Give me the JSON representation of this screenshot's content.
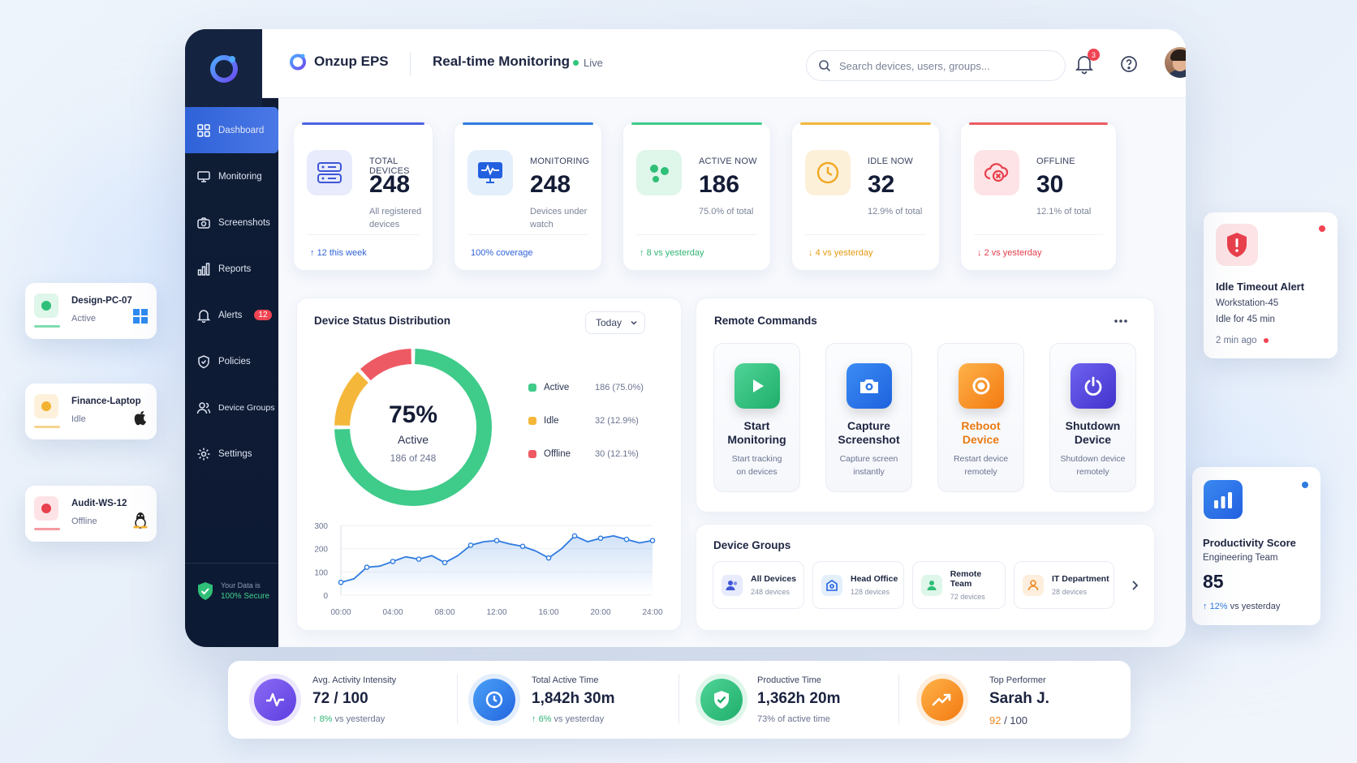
{
  "app": {
    "brand": "Onzup EPS",
    "title": "Real-time Monitoring",
    "live": "Live"
  },
  "search": {
    "placeholder": "Search devices, users, groups..."
  },
  "notifications": {
    "count": "3"
  },
  "sidebar": {
    "items": [
      {
        "label": "Dashboard",
        "icon": "grid-icon"
      },
      {
        "label": "Monitoring",
        "icon": "monitor-icon"
      },
      {
        "label": "Screenshots",
        "icon": "camera-icon"
      },
      {
        "label": "Reports",
        "icon": "bar-chart-icon"
      },
      {
        "label": "Alerts",
        "icon": "bell-icon",
        "badge": "12"
      },
      {
        "label": "Policies",
        "icon": "shield-icon"
      },
      {
        "label": "Device Groups",
        "icon": "users-icon"
      },
      {
        "label": "Settings",
        "icon": "gear-icon"
      }
    ],
    "secure_line1": "Your Data is",
    "secure_line2": "100% Secure"
  },
  "stats": [
    {
      "label": "TOTAL DEVICES",
      "value": "248",
      "sub": "All registered devices",
      "foot_arrow": "↑",
      "foot_num": "12",
      "foot_text": "this week",
      "color": "#2f62d8"
    },
    {
      "label": "MONITORING",
      "value": "248",
      "sub": "Devices under watch",
      "foot_arrow": "",
      "foot_num": "",
      "foot_text": "100% coverage",
      "color": "#2f62d8"
    },
    {
      "label": "ACTIVE NOW",
      "value": "186",
      "sub": "75.0% of total",
      "foot_arrow": "↑",
      "foot_num": "8",
      "foot_text": "vs yesterday",
      "color": "#2fb574"
    },
    {
      "label": "IDLE NOW",
      "value": "32",
      "sub": "12.9% of total",
      "foot_arrow": "↓",
      "foot_num": "4",
      "foot_text": "vs yesterday",
      "color": "#e39a12"
    },
    {
      "label": "OFFLINE",
      "value": "30",
      "sub": "12.1% of total",
      "foot_arrow": "↓",
      "foot_num": "2",
      "foot_text": "vs yesterday",
      "color": "#e23d4b"
    }
  ],
  "distribution": {
    "title": "Device Status Distribution",
    "range": "Today",
    "center_pct": "75%",
    "center_label": "Active",
    "center_sub": "186 of 248",
    "legend": [
      {
        "name": "Active",
        "value": "186  (75.0%)",
        "color": "#3fcb8a"
      },
      {
        "name": "Idle",
        "value": "32  (12.9%)",
        "color": "#f4b73a"
      },
      {
        "name": "Offline",
        "value": "30  (12.1%)",
        "color": "#ee5a63"
      }
    ]
  },
  "chart_data": {
    "type": "line",
    "x_ticks": [
      "00:00",
      "04:00",
      "08:00",
      "12:00",
      "16:00",
      "20:00",
      "24:00"
    ],
    "y_ticks": [
      "300",
      "200",
      "100",
      "0"
    ],
    "ylim": [
      0,
      300
    ],
    "xlim": [
      0,
      24
    ],
    "x": [
      0,
      1,
      2,
      3,
      4,
      5,
      6,
      7,
      8,
      9,
      10,
      11,
      12,
      13,
      14,
      15,
      16,
      17,
      18,
      19,
      20,
      21,
      22,
      23,
      24
    ],
    "values": [
      55,
      70,
      120,
      125,
      145,
      165,
      155,
      170,
      140,
      170,
      215,
      230,
      235,
      220,
      210,
      190,
      160,
      200,
      255,
      230,
      245,
      255,
      240,
      225,
      235
    ],
    "color": "#2f7be0"
  },
  "remote": {
    "title": "Remote Commands",
    "commands": [
      {
        "title_line1": "Start",
        "title_line2": "Monitoring",
        "sub_line1": "Start tracking",
        "sub_line2": "on devices",
        "icon": "play-icon"
      },
      {
        "title_line1": "Capture",
        "title_line2": "Screenshot",
        "sub_line1": "Capture screen",
        "sub_line2": "instantly",
        "icon": "camera-icon"
      },
      {
        "title_line1": "Reboot",
        "title_line2": "Device",
        "sub_line1": "Restart device",
        "sub_line2": "remotely",
        "icon": "reboot-icon"
      },
      {
        "title_line1": "Shutdown",
        "title_line2": "Device",
        "sub_line1": "Shutdown device",
        "sub_line2": "remotely",
        "icon": "power-icon"
      }
    ]
  },
  "groups": {
    "title": "Device Groups",
    "items": [
      {
        "name": "All Devices",
        "count": "248 devices"
      },
      {
        "name": "Head Office",
        "count": "128 devices"
      },
      {
        "name": "Remote Team",
        "count": "72 devices"
      },
      {
        "name": "IT Department",
        "count": "28 devices"
      }
    ]
  },
  "floating_devices": [
    {
      "name": "Design-PC-07",
      "status": "Active",
      "os": "windows-icon"
    },
    {
      "name": "Finance-Laptop",
      "status": "Idle",
      "os": "apple-icon"
    },
    {
      "name": "Audit-WS-12",
      "status": "Offline",
      "os": "linux-icon"
    }
  ],
  "alert_card": {
    "title": "Idle Timeout Alert",
    "device": "Workstation-45",
    "detail": "Idle for 45 min",
    "time": "2 min ago"
  },
  "productivity_card": {
    "title": "Productivity Score",
    "team": "Engineering Team",
    "value": "85",
    "change": "12%",
    "change_text": "vs yesterday"
  },
  "bottom_stats": [
    {
      "label": "Avg. Activity Intensity",
      "value_main": "72",
      "value_sep": " / ",
      "value_rest": "100",
      "change": "8%",
      "change_text": "vs yesterday"
    },
    {
      "label": "Total Active Time",
      "value_main": "1,842h 30m",
      "value_sep": "",
      "value_rest": "",
      "change": "6%",
      "change_text": "vs yesterday"
    },
    {
      "label": "Productive Time",
      "value_main": "1,362h 20m",
      "value_sep": "",
      "value_rest": "",
      "change": "",
      "change_text": "73% of active time"
    },
    {
      "label": "Top Performer",
      "value_main": "Sarah J.",
      "value_sep": "",
      "value_rest": "",
      "score": "92",
      "score_total": " / 100"
    }
  ]
}
